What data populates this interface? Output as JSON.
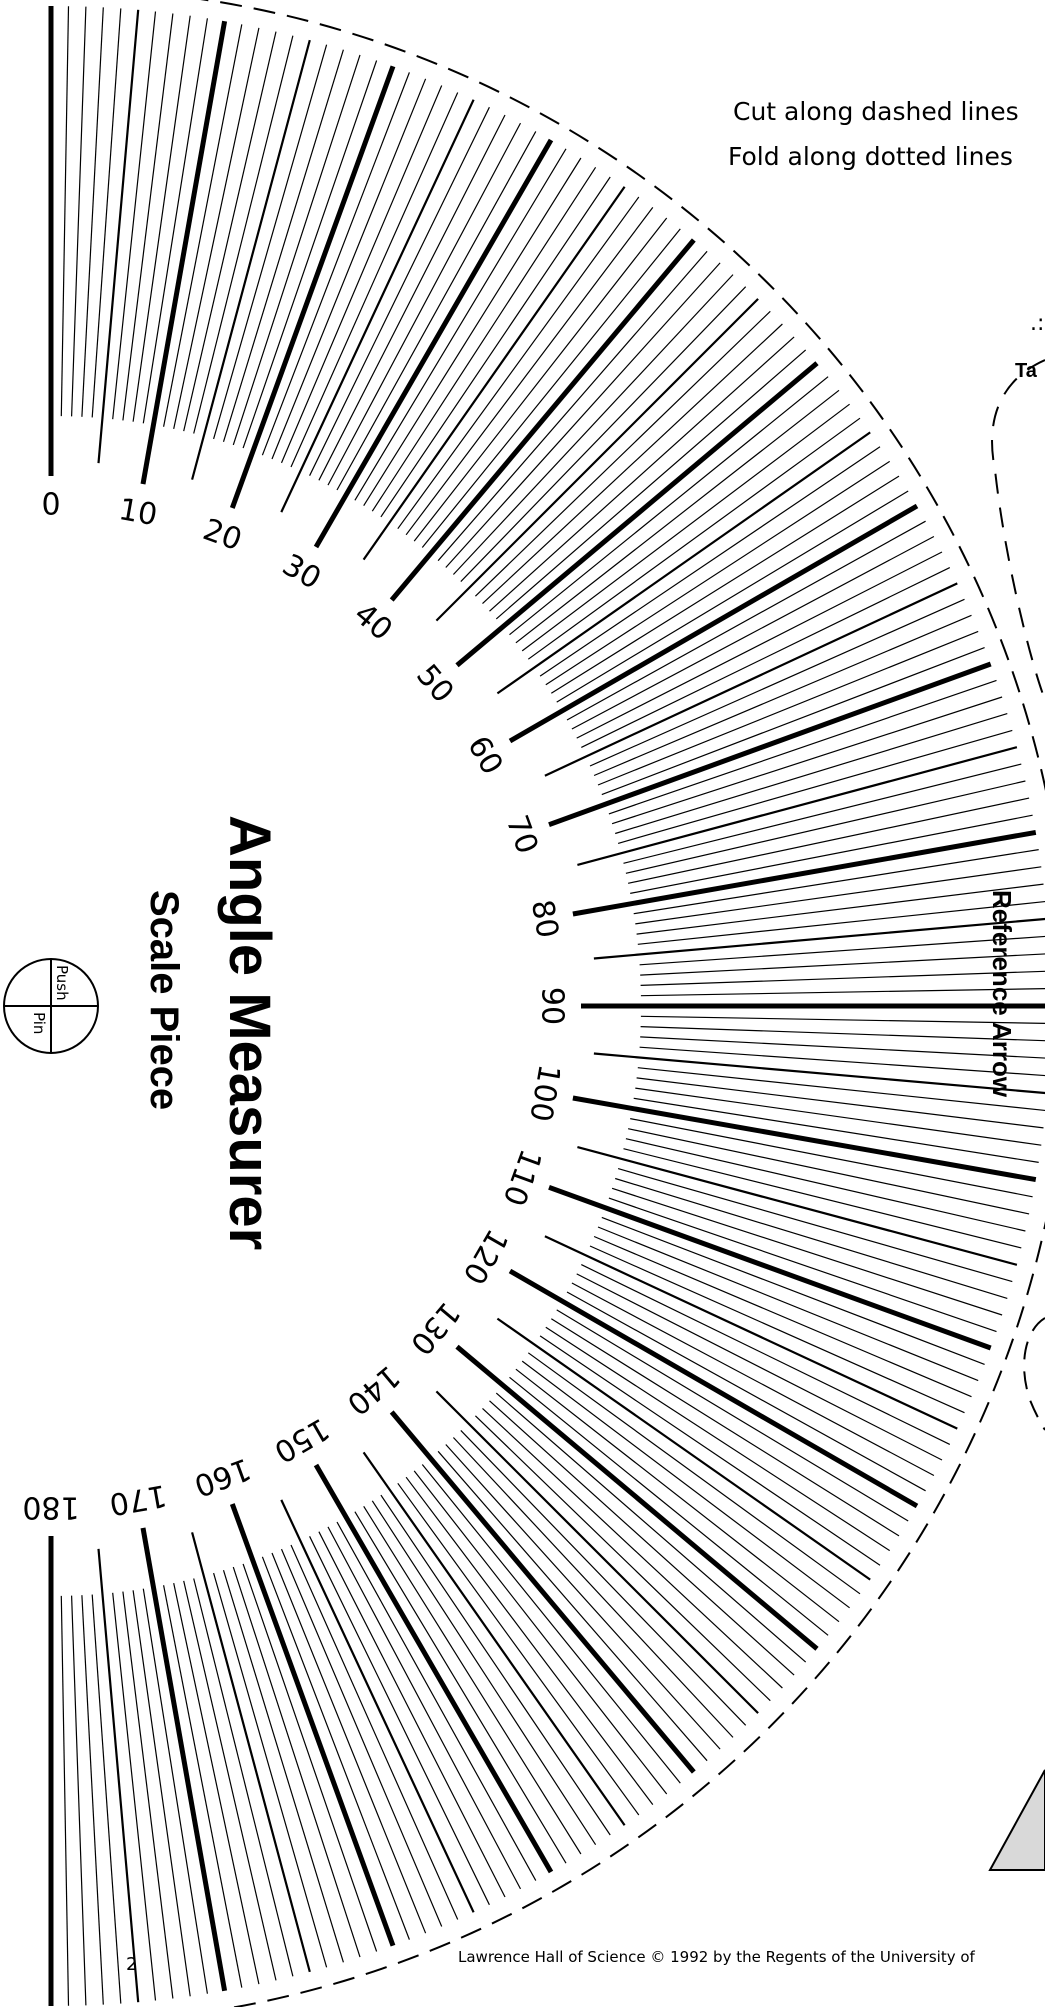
{
  "instructions": {
    "cut": "Cut along dashed lines",
    "fold": "Fold along dotted lines"
  },
  "title": {
    "main": "Angle Measurer",
    "sub": "Scale Piece"
  },
  "pin": {
    "push": "Push",
    "pin": "Pin"
  },
  "reference_arrow": "Reference Arrow",
  "tab_fragment": "Ta",
  "page_number": "2",
  "footer": "Lawrence Hall of Science © 1992 by the Regents of the University of",
  "scale": {
    "min_degrees": 0,
    "max_degrees": 180,
    "major_step": 10,
    "labels": [
      "0",
      "10",
      "20",
      "30",
      "40",
      "50",
      "60",
      "70",
      "80",
      "90",
      "100",
      "110",
      "120",
      "130",
      "140",
      "150",
      "160",
      "170",
      "180"
    ]
  }
}
